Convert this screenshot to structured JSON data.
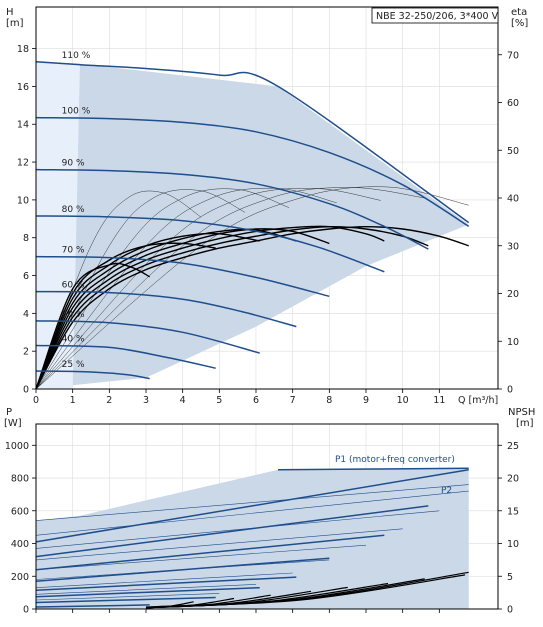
{
  "colors": {
    "curve": "#1f4e8c",
    "envelope": "#cbd8e8",
    "envelope_light": "#e6effa",
    "grid": "#dddddd",
    "eta": "#000000",
    "npsh": "#000000",
    "p_thin": "#1f4e8c"
  },
  "chart_data": [
    {
      "type": "line",
      "id": "head",
      "title": "NBE 32-250/206, 3*400 V",
      "y_label_top": "H",
      "y_unit": "[m]",
      "y2_label_top": "eta",
      "y2_unit": "[%]",
      "x_label": "Q [m³/h]",
      "xlim": [
        0,
        12.6
      ],
      "ylim": [
        0,
        20.2
      ],
      "y2lim": [
        0,
        80
      ],
      "x_ticks": [
        0,
        1,
        2,
        3,
        4,
        5,
        6,
        7,
        8,
        9,
        10,
        11
      ],
      "y_ticks": [
        0,
        2,
        4,
        6,
        8,
        10,
        12,
        14,
        16,
        18
      ],
      "y2_ticks": [
        0,
        10,
        20,
        30,
        40,
        50,
        60,
        70
      ],
      "grid": true,
      "envelope": [
        [
          0,
          17.3
        ],
        [
          0,
          0
        ],
        [
          1.0,
          0.2
        ],
        [
          3.0,
          0.6
        ],
        [
          6.0,
          3.3
        ],
        [
          9.0,
          6.5
        ],
        [
          11.8,
          8.7
        ],
        [
          6.6,
          16.0
        ],
        [
          1.2,
          17.2
        ]
      ],
      "light_region": [
        [
          0,
          17.3
        ],
        [
          1.2,
          17.2
        ],
        [
          1.0,
          0
        ],
        [
          0,
          0
        ]
      ],
      "series": [
        {
          "name": "110 %",
          "x": [
            0,
            1.2,
            3,
            5,
            6.6,
            11.8
          ],
          "y": [
            17.3,
            17.15,
            16.95,
            16.6,
            16.0,
            8.8
          ]
        },
        {
          "name": "100 %",
          "x": [
            0,
            2,
            4,
            6,
            8,
            10,
            11.8
          ],
          "y": [
            14.35,
            14.3,
            14.1,
            13.6,
            12.5,
            10.8,
            8.6
          ]
        },
        {
          "name": "90 %",
          "x": [
            0,
            2,
            4,
            6,
            8,
            9.5,
            10.7
          ],
          "y": [
            11.6,
            11.55,
            11.35,
            10.85,
            9.8,
            8.6,
            7.4
          ]
        },
        {
          "name": "80 %",
          "x": [
            0,
            2,
            4,
            6,
            7.7,
            9.5
          ],
          "y": [
            9.15,
            9.1,
            8.9,
            8.35,
            7.5,
            6.2
          ]
        },
        {
          "name": "70 %",
          "x": [
            0,
            2,
            4,
            6,
            8.0
          ],
          "y": [
            7.0,
            6.95,
            6.65,
            5.9,
            4.9
          ]
        },
        {
          "name": "60 %",
          "x": [
            0,
            2,
            4,
            5.6,
            7.1
          ],
          "y": [
            5.15,
            5.1,
            4.75,
            4.1,
            3.3
          ]
        },
        {
          "name": "50 %",
          "x": [
            0,
            2,
            4,
            6.1
          ],
          "y": [
            3.6,
            3.5,
            3.0,
            1.9
          ]
        },
        {
          "name": "40 %",
          "x": [
            0,
            2,
            3.5,
            4.9
          ],
          "y": [
            2.3,
            2.2,
            1.7,
            1.1
          ]
        },
        {
          "name": "25 %",
          "x": [
            0,
            1.5,
            2.5,
            3.1
          ],
          "y": [
            0.95,
            0.9,
            0.75,
            0.55
          ]
        }
      ],
      "eta_series": [
        {
          "x": [
            0,
            1,
            2,
            3,
            4,
            5,
            6,
            7,
            8,
            9,
            10,
            11,
            11.8
          ],
          "y": [
            0,
            14,
            21,
            25,
            27.5,
            29.5,
            31,
            32.5,
            33.5,
            34,
            33.5,
            32,
            30
          ]
        },
        {
          "x": [
            0,
            1,
            2,
            3,
            4,
            5,
            6,
            7,
            8,
            9,
            10,
            10.7
          ],
          "y": [
            0,
            15,
            22,
            26,
            28.5,
            30.5,
            32,
            33.3,
            34,
            33.5,
            32,
            30
          ]
        },
        {
          "x": [
            0,
            1,
            2,
            3,
            4,
            5,
            6,
            7,
            8,
            9,
            9.5
          ],
          "y": [
            0,
            16,
            23,
            27,
            29.5,
            31.5,
            33,
            33.8,
            34,
            32.5,
            31
          ]
        },
        {
          "x": [
            0,
            1,
            2,
            3,
            4,
            5,
            6,
            7,
            8.0
          ],
          "y": [
            0,
            17,
            24,
            28,
            30.5,
            32.5,
            33.5,
            33,
            30.5
          ]
        },
        {
          "x": [
            0,
            1,
            2,
            3,
            4,
            5,
            6,
            7.1
          ],
          "y": [
            0,
            18,
            25,
            29,
            31.5,
            33,
            33.3,
            31
          ]
        },
        {
          "x": [
            0,
            1,
            2,
            3,
            4,
            5,
            6.1
          ],
          "y": [
            0,
            19,
            26,
            30,
            32,
            32.5,
            31
          ]
        },
        {
          "x": [
            0,
            1,
            2,
            3,
            4,
            4.9
          ],
          "y": [
            0,
            20,
            27,
            30,
            30.5,
            29.5
          ]
        },
        {
          "x": [
            0,
            1,
            2,
            2.6,
            3.1
          ],
          "y": [
            0,
            21,
            26,
            25.5,
            23.5
          ]
        }
      ],
      "eta_thin": [
        {
          "x": [
            0,
            1.5,
            2.5,
            3.5,
            4.5
          ],
          "y": [
            0,
            30,
            40,
            41,
            36
          ]
        },
        {
          "x": [
            0,
            2,
            3.2,
            4.5,
            5.7
          ],
          "y": [
            0,
            30,
            40,
            41.5,
            37
          ]
        },
        {
          "x": [
            0,
            2.5,
            4,
            5.5,
            6.9
          ],
          "y": [
            0,
            30,
            40,
            41.8,
            38
          ]
        },
        {
          "x": [
            0,
            3,
            4.8,
            6.6,
            8.2
          ],
          "y": [
            0,
            30,
            40,
            42,
            39
          ]
        },
        {
          "x": [
            0,
            3.5,
            5.6,
            7.6,
            9.4
          ],
          "y": [
            0,
            30,
            40,
            42,
            39.5
          ]
        },
        {
          "x": [
            0,
            4,
            6.4,
            8.6,
            10.6
          ],
          "y": [
            0,
            30,
            40,
            42.2,
            40
          ]
        },
        {
          "x": [
            0,
            4.5,
            7.2,
            9.6,
            11.8
          ],
          "y": [
            0,
            30,
            40,
            42.3,
            38.5
          ]
        }
      ]
    },
    {
      "type": "line",
      "id": "power",
      "y_label_top": "P",
      "y_unit": "[W]",
      "y2_label_top": "NPSH",
      "y2_unit": "[m]",
      "xlim": [
        0,
        12.6
      ],
      "ylim": [
        0,
        1130
      ],
      "y2lim": [
        0,
        28.25
      ],
      "y_ticks": [
        0,
        200,
        400,
        600,
        800,
        1000
      ],
      "y2_ticks": [
        0,
        5,
        10,
        15,
        20,
        25
      ],
      "grid": true,
      "annotations": [
        "P1 (motor+freq converter)",
        "P2"
      ],
      "envelope": [
        [
          0,
          540
        ],
        [
          0,
          0
        ],
        [
          11.8,
          0
        ],
        [
          11.8,
          730
        ],
        [
          11.8,
          860
        ],
        [
          6.6,
          850
        ],
        [
          1.2,
          570
        ]
      ],
      "p1_series": [
        {
          "x": [
            0,
            11.8
          ],
          "y": [
            410,
            850
          ]
        },
        {
          "x": [
            0,
            10.7
          ],
          "y": [
            320,
            630
          ]
        },
        {
          "x": [
            0,
            9.5
          ],
          "y": [
            240,
            450
          ]
        },
        {
          "x": [
            0,
            8.0
          ],
          "y": [
            170,
            310
          ]
        },
        {
          "x": [
            0,
            7.1
          ],
          "y": [
            115,
            195
          ]
        },
        {
          "x": [
            0,
            6.1
          ],
          "y": [
            75,
            130
          ]
        },
        {
          "x": [
            0,
            4.9
          ],
          "y": [
            40,
            70
          ]
        },
        {
          "x": [
            0,
            3.1
          ],
          "y": [
            12,
            25
          ]
        }
      ],
      "p2_thin": [
        {
          "x": [
            0,
            11.8
          ],
          "y": [
            540,
            760
          ]
        },
        {
          "x": [
            0,
            11.8
          ],
          "y": [
            450,
            720
          ]
        },
        {
          "x": [
            0,
            11.0
          ],
          "y": [
            370,
            600
          ]
        },
        {
          "x": [
            0,
            10.0
          ],
          "y": [
            300,
            490
          ]
        },
        {
          "x": [
            0,
            9.0
          ],
          "y": [
            240,
            390
          ]
        },
        {
          "x": [
            0,
            8.0
          ],
          "y": [
            180,
            300
          ]
        },
        {
          "x": [
            0,
            7.0
          ],
          "y": [
            130,
            220
          ]
        },
        {
          "x": [
            0,
            6.0
          ],
          "y": [
            90,
            150
          ]
        },
        {
          "x": [
            0,
            5.0
          ],
          "y": [
            55,
            95
          ]
        }
      ],
      "npsh_series": [
        {
          "x": [
            3.0,
            11.8
          ],
          "y": [
            0.3,
            5.6
          ]
        },
        {
          "x": [
            3.0,
            11.7
          ],
          "y": [
            0.2,
            5.2
          ]
        },
        {
          "x": [
            3.0,
            10.6
          ],
          "y": [
            0.2,
            4.6
          ]
        },
        {
          "x": [
            3.0,
            9.6
          ],
          "y": [
            0.2,
            3.9
          ]
        },
        {
          "x": [
            3.0,
            8.5
          ],
          "y": [
            0.2,
            3.3
          ]
        },
        {
          "x": [
            3.0,
            7.5
          ],
          "y": [
            0.2,
            2.7
          ]
        },
        {
          "x": [
            3.0,
            6.4
          ],
          "y": [
            0.2,
            2.1
          ]
        },
        {
          "x": [
            3.0,
            5.4
          ],
          "y": [
            0.2,
            1.6
          ]
        },
        {
          "x": [
            3.0,
            4.3
          ],
          "y": [
            0.2,
            1.1
          ]
        }
      ]
    }
  ]
}
